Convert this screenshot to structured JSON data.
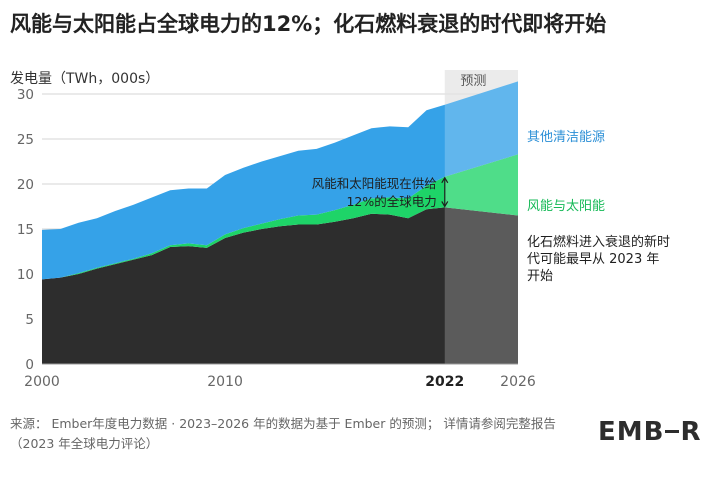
{
  "title": "风能与太阳能占全球电力的12%；化石燃料衰退的时代即将开始",
  "source": "来源： Ember年度电力数据 · 2023–2026 年的数据为基于 Ember 的预测； 详情请参阅完整报告（2023 年全球电力评论）",
  "logo": "EMBER",
  "colors": {
    "other_clean": "#35a2e8",
    "wind_solar": "#1ed468",
    "fossil": "#2d2d2d",
    "forecast_shade": "#e6e6e6"
  },
  "chart_data": {
    "type": "area",
    "stacked": true,
    "ylabel": "发电量（TWh，000s）",
    "ylim": [
      0,
      32
    ],
    "yticks": [
      0,
      5,
      10,
      15,
      20,
      25,
      30
    ],
    "xlim": [
      2000,
      2026
    ],
    "xticks": [
      {
        "value": 2000,
        "label": "2000",
        "bold": false
      },
      {
        "value": 2010,
        "label": "2010",
        "bold": false
      },
      {
        "value": 2022,
        "label": "2022",
        "bold": true
      },
      {
        "value": 2026,
        "label": "2026",
        "bold": false
      }
    ],
    "grid": true,
    "forecast": {
      "from": 2022,
      "to": 2026,
      "label": "预测"
    },
    "x": [
      2000,
      2001,
      2002,
      2003,
      2004,
      2005,
      2006,
      2007,
      2008,
      2009,
      2010,
      2011,
      2012,
      2013,
      2014,
      2015,
      2016,
      2017,
      2018,
      2019,
      2020,
      2021,
      2022,
      2026
    ],
    "series": [
      {
        "name": "化石燃料进入衰退的新时代可能最早从 2023 年开始",
        "key": "fossil",
        "values": [
          9.4,
          9.6,
          10.0,
          10.6,
          11.1,
          11.6,
          12.1,
          13.0,
          13.1,
          12.9,
          14.0,
          14.6,
          15.0,
          15.3,
          15.5,
          15.5,
          15.8,
          16.2,
          16.7,
          16.6,
          16.2,
          17.2,
          17.4,
          16.5
        ]
      },
      {
        "name": "风能与太阳能",
        "key": "wind_solar",
        "values": [
          0.0,
          0.0,
          0.1,
          0.1,
          0.1,
          0.1,
          0.2,
          0.2,
          0.3,
          0.3,
          0.4,
          0.5,
          0.6,
          0.8,
          1.0,
          1.1,
          1.3,
          1.5,
          1.7,
          1.9,
          2.2,
          2.6,
          3.4,
          6.8
        ]
      },
      {
        "name": "其他清洁能源",
        "key": "other_clean",
        "values": [
          5.5,
          5.4,
          5.6,
          5.5,
          5.8,
          6.0,
          6.2,
          6.1,
          6.1,
          6.3,
          6.6,
          6.7,
          6.9,
          7.0,
          7.2,
          7.3,
          7.5,
          7.7,
          7.8,
          7.9,
          7.9,
          8.4,
          8.0,
          8.1
        ]
      }
    ],
    "annotations": [
      {
        "text": "风能和太阳能现在供给12%的全球电力",
        "x": 2022
      }
    ]
  }
}
